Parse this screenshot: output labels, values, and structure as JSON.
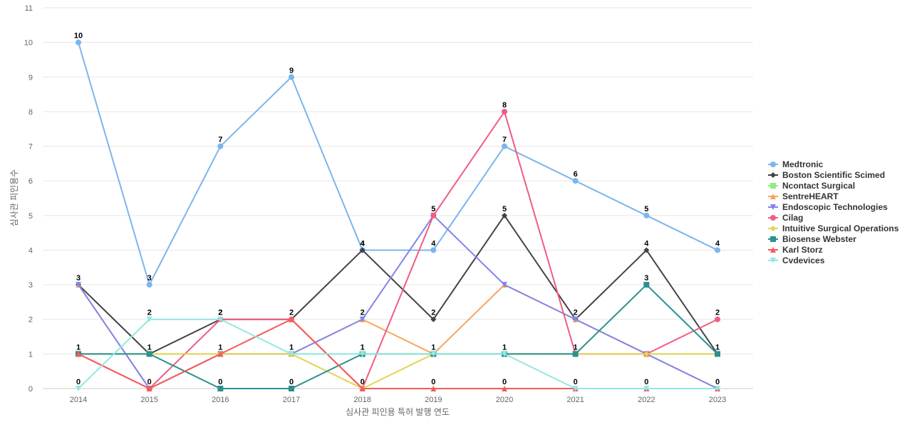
{
  "chart_data": {
    "type": "line",
    "title": "",
    "xlabel": "심사관 피인용 특허 발행 연도",
    "ylabel": "심사관 피인용수",
    "categories": [
      "2014",
      "2015",
      "2016",
      "2017",
      "2018",
      "2019",
      "2020",
      "2021",
      "2022",
      "2023"
    ],
    "ylim": [
      0,
      11
    ],
    "yticks": [
      0,
      1,
      2,
      3,
      4,
      5,
      6,
      7,
      8,
      9,
      10,
      11
    ],
    "grid": true,
    "legend_position": "right",
    "series": [
      {
        "name": "Medtronic",
        "color": "#7cb5ec",
        "marker": "circle",
        "values": [
          10,
          3,
          7,
          9,
          4,
          4,
          7,
          6,
          5,
          4
        ],
        "labels": [
          true,
          true,
          true,
          true,
          true,
          true,
          true,
          true,
          true,
          true
        ]
      },
      {
        "name": "Boston Scientific Scimed",
        "color": "#434348",
        "marker": "diamond",
        "values": [
          3,
          1,
          2,
          2,
          4,
          2,
          5,
          2,
          4,
          1
        ],
        "labels": [
          true,
          false,
          true,
          true,
          true,
          true,
          true,
          true,
          true,
          false
        ]
      },
      {
        "name": "Ncontact Surgical",
        "color": "#90ed7d",
        "marker": "square",
        "values": [
          1,
          1,
          1,
          1,
          1,
          1,
          1,
          1,
          1,
          1
        ],
        "labels": [
          false,
          false,
          false,
          false,
          false,
          false,
          false,
          false,
          false,
          false
        ]
      },
      {
        "name": "SentreHEART",
        "color": "#f7a35c",
        "marker": "triangle",
        "values": [
          3,
          0,
          1,
          1,
          2,
          1,
          3,
          2,
          1,
          0
        ],
        "labels": [
          false,
          false,
          false,
          false,
          false,
          false,
          false,
          false,
          false,
          false
        ]
      },
      {
        "name": "Endoscopic Technologies",
        "color": "#8085e9",
        "marker": "triangle-down",
        "values": [
          3,
          0,
          1,
          1,
          2,
          5,
          3,
          2,
          1,
          0
        ],
        "labels": [
          false,
          false,
          false,
          false,
          true,
          false,
          false,
          false,
          false,
          false
        ]
      },
      {
        "name": "Cilag",
        "color": "#f15c80",
        "marker": "circle",
        "values": [
          1,
          0,
          2,
          2,
          0,
          5,
          8,
          1,
          1,
          2
        ],
        "labels": [
          false,
          false,
          false,
          false,
          false,
          true,
          true,
          false,
          false,
          true
        ]
      },
      {
        "name": "Intuitive Surgical Operations",
        "color": "#e4d354",
        "marker": "diamond",
        "values": [
          1,
          1,
          1,
          1,
          0,
          1,
          1,
          1,
          1,
          1
        ],
        "labels": [
          false,
          false,
          false,
          false,
          false,
          false,
          false,
          false,
          false,
          false
        ]
      },
      {
        "name": "Biosense Webster",
        "color": "#2b908f",
        "marker": "square",
        "values": [
          1,
          1,
          0,
          0,
          1,
          1,
          1,
          1,
          3,
          1
        ],
        "labels": [
          true,
          true,
          true,
          true,
          true,
          true,
          true,
          true,
          true,
          true
        ]
      },
      {
        "name": "Karl Storz",
        "color": "#f45b5b",
        "marker": "triangle",
        "values": [
          1,
          0,
          1,
          2,
          0,
          0,
          0,
          0,
          0,
          0
        ],
        "labels": [
          false,
          true,
          true,
          false,
          true,
          true,
          true,
          true,
          true,
          true
        ]
      },
      {
        "name": "Cvdevices",
        "color": "#91e8e1",
        "marker": "triangle-down",
        "values": [
          0,
          2,
          2,
          1,
          1,
          1,
          1,
          0,
          0,
          0
        ],
        "labels": [
          true,
          true,
          true,
          true,
          false,
          false,
          false,
          false,
          false,
          false
        ]
      }
    ]
  }
}
